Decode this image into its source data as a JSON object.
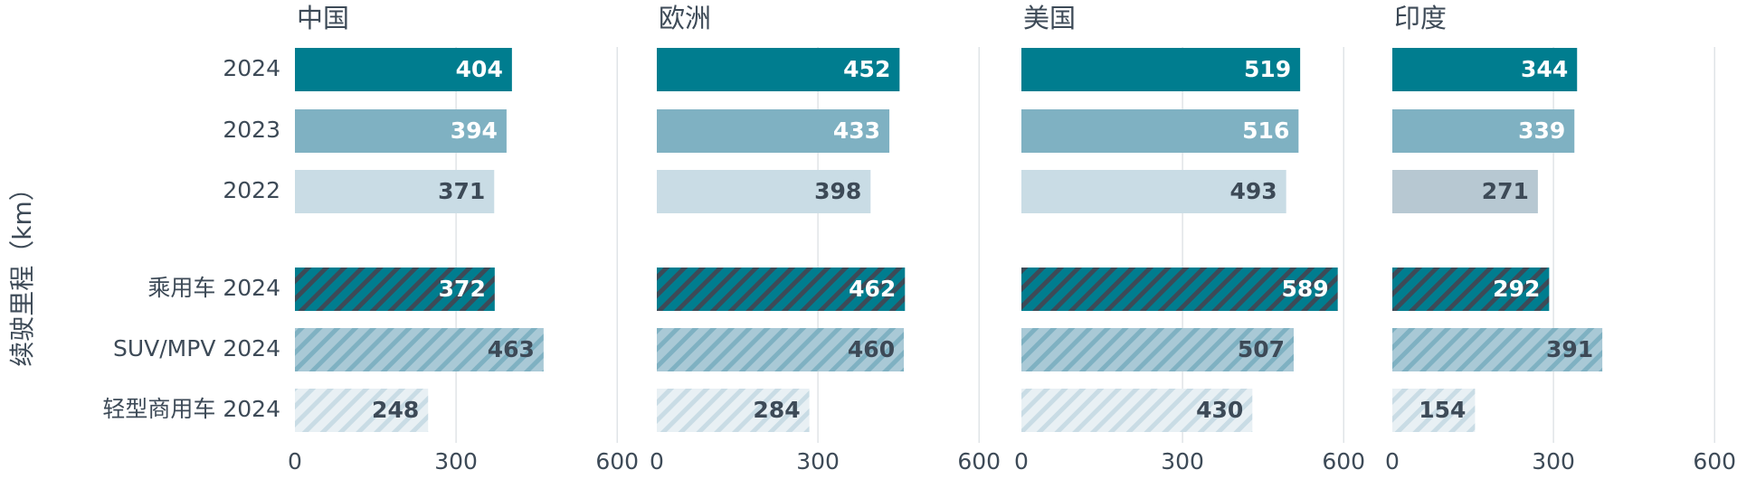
{
  "chart_data": {
    "type": "bar",
    "orientation": "horizontal",
    "ylabel": "续驶里程（km）",
    "categories": [
      "2024",
      "2023",
      "2022",
      "乘用车 2024",
      "SUV/MPV 2024",
      "轻型商用车 2024"
    ],
    "xticks": [
      "0",
      "300",
      "600"
    ],
    "xlim": [
      0,
      600
    ],
    "grid": true,
    "colors": {
      "2024": "#007d8f",
      "2023": "#7fb1c2",
      "2022": "#c9dce5",
      "2022_india": "#b7c8d2",
      "label_dark": "#3d4a57",
      "label_light": "#ffffff"
    },
    "panels": [
      {
        "title": "中国",
        "values": [
          404,
          394,
          371,
          372,
          463,
          248
        ]
      },
      {
        "title": "欧洲",
        "values": [
          452,
          433,
          398,
          462,
          460,
          284
        ]
      },
      {
        "title": "美国",
        "values": [
          519,
          516,
          493,
          589,
          507,
          430
        ]
      },
      {
        "title": "印度",
        "values": [
          344,
          339,
          271,
          292,
          391,
          154
        ]
      }
    ]
  }
}
